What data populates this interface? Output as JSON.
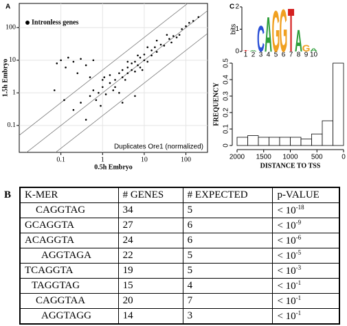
{
  "chart_data": [
    {
      "type": "scatter",
      "panel": "A",
      "x_label": "0.5h Embryo",
      "y_label": "1.5h Embryo",
      "legend_label": "Intronless genes",
      "annotation": "Duplicates Ore1 (normalized)",
      "log_x": true,
      "log_y": true,
      "color": "#000000",
      "diagonals": [
        0.2,
        1,
        5
      ],
      "xlim": [
        0.01,
        330
      ],
      "ylim": [
        0.015,
        550
      ],
      "xticks": [
        0.1,
        1,
        10,
        100
      ],
      "yticks": [
        0.1,
        1,
        10,
        100
      ],
      "x": [
        0.08,
        0.1,
        0.13,
        0.15,
        0.2,
        0.25,
        0.3,
        0.4,
        0.5,
        0.6,
        0.07,
        0.12,
        0.3,
        0.5,
        0.6,
        0.8,
        1,
        1,
        1.2,
        1.5,
        1.5,
        2,
        2,
        2.5,
        3,
        3,
        3.5,
        4,
        4,
        5,
        5,
        6,
        6,
        7,
        8,
        8,
        10,
        10,
        12,
        15,
        15,
        18,
        20,
        25,
        30,
        40,
        50,
        60,
        80,
        100,
        150,
        200,
        0.9,
        1.1,
        2.5,
        4,
        7,
        12,
        20,
        35,
        45,
        70,
        120,
        0.7,
        1.8,
        9,
        3,
        0.4,
        6,
        0.2
      ],
      "y": [
        8,
        10,
        6,
        12,
        9,
        4,
        11,
        7,
        3,
        10,
        1.2,
        0.6,
        0.5,
        0.8,
        1.2,
        1,
        1.5,
        2.5,
        0.9,
        2,
        3.5,
        2.5,
        1.5,
        4,
        3,
        5,
        2.5,
        6,
        4,
        5,
        8,
        4.5,
        9,
        7,
        12,
        6,
        10,
        15,
        9,
        20,
        14,
        25,
        18,
        30,
        28,
        45,
        55,
        50,
        90,
        110,
        160,
        210,
        0.4,
        3,
        1,
        9,
        14,
        25,
        40,
        60,
        35,
        60,
        140,
        0.6,
        1.2,
        5,
        0.5,
        0.15,
        0.8,
        0.3
      ]
    },
    {
      "type": "logo",
      "panel": "C",
      "y_label": "bits",
      "categories": [
        "1",
        "2",
        "3",
        "4",
        "5",
        "6",
        "7",
        "8",
        "9",
        "10"
      ],
      "letters": [
        "T",
        "A",
        "C",
        "A",
        "G",
        "G",
        "T",
        "A",
        "G",
        "A"
      ],
      "values": [
        0.05,
        0.05,
        1.2,
        1.6,
        1.9,
        1.95,
        2,
        1.0,
        0.3,
        0.15
      ],
      "letter_colors": {
        "A": "#2e9e3a",
        "C": "#2a4fd6",
        "G": "#f0a020",
        "T": "#d42020"
      },
      "ylim": [
        0,
        2
      ],
      "yticks": [
        0,
        1,
        2
      ]
    },
    {
      "type": "histogram",
      "x_label": "DISTANCE TO TSS",
      "y_label": "FREQUENCY",
      "bins": [
        2000,
        1800,
        1600,
        1400,
        1200,
        1000,
        800,
        600,
        400,
        200,
        0
      ],
      "values": [
        0.05,
        0.06,
        0.05,
        0.05,
        0.05,
        0.05,
        0.04,
        0.07,
        0.15,
        0.5
      ],
      "xlim": [
        2000,
        0
      ],
      "xticks": [
        2000,
        1500,
        1000,
        500,
        0
      ],
      "ylim": [
        0,
        0.5
      ],
      "yticks": [
        0,
        0.1,
        0.2,
        0.3,
        0.4,
        0.5
      ]
    }
  ],
  "table": {
    "panel": "B",
    "header": [
      "K-MER",
      "# GENES",
      "# EXPECTED",
      "p-VALUE"
    ],
    "rows": [
      [
        "CAGGTAG",
        34,
        5,
        {
          "base": "< 10",
          "exp": "-18"
        }
      ],
      [
        "GCAGGTA",
        27,
        6,
        {
          "base": "< 10",
          "exp": "-9"
        }
      ],
      [
        "ACAGGTA",
        24,
        6,
        {
          "base": "< 10",
          "exp": "-6"
        }
      ],
      [
        "AGGTAGA",
        22,
        5,
        {
          "base": "< 10",
          "exp": "-5"
        }
      ],
      [
        "TCAGGTA",
        19,
        5,
        {
          "base": "< 10",
          "exp": "-3"
        }
      ],
      [
        "TAGGTAG",
        15,
        4,
        {
          "base": "< 10",
          "exp": "-1"
        }
      ],
      [
        "CAGGTAA",
        20,
        7,
        {
          "base": "< 10",
          "exp": "-1"
        }
      ],
      [
        "AGGTAGG",
        14,
        3,
        {
          "base": "< 10",
          "exp": "-1"
        }
      ]
    ]
  }
}
